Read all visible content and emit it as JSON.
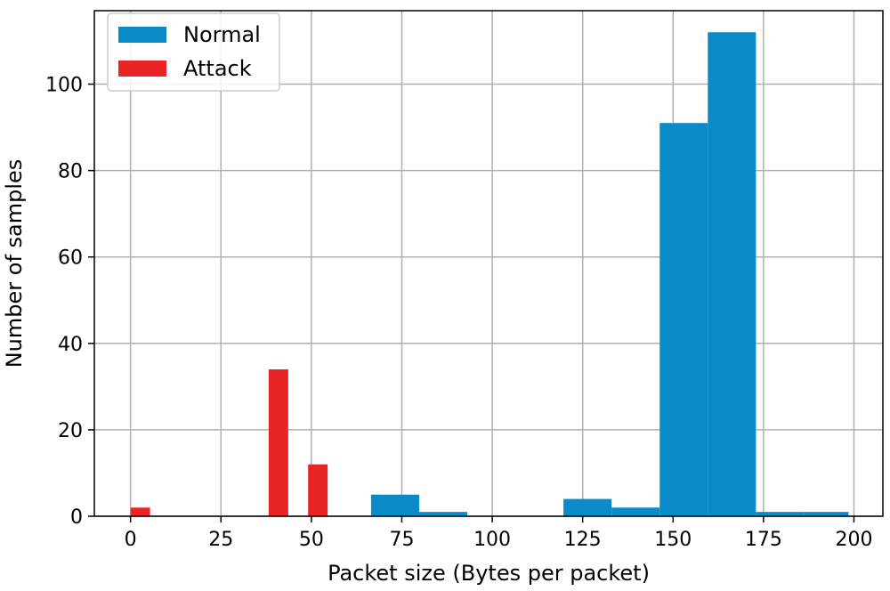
{
  "chart_data": {
    "type": "bar",
    "title": "",
    "xlabel": "Packet size (Bytes per packet)",
    "ylabel": "Number of samples",
    "xlim": [
      -10,
      208
    ],
    "ylim": [
      0,
      117
    ],
    "xticks": [
      0,
      25,
      50,
      75,
      100,
      125,
      150,
      175,
      200
    ],
    "yticks": [
      0,
      20,
      40,
      60,
      80,
      100
    ],
    "grid": true,
    "legend_position": "top-left",
    "series": [
      {
        "name": "Normal",
        "color": "#0a8ac9",
        "bins": [
          {
            "x0": 66.5,
            "x1": 79.8,
            "value": 5
          },
          {
            "x0": 79.8,
            "x1": 93.1,
            "value": 1
          },
          {
            "x0": 119.7,
            "x1": 133.0,
            "value": 4
          },
          {
            "x0": 133.0,
            "x1": 146.3,
            "value": 2
          },
          {
            "x0": 146.3,
            "x1": 159.6,
            "value": 91
          },
          {
            "x0": 159.6,
            "x1": 172.9,
            "value": 112
          },
          {
            "x0": 172.9,
            "x1": 186.2,
            "value": 1
          },
          {
            "x0": 186.2,
            "x1": 198.5,
            "value": 1
          }
        ]
      },
      {
        "name": "Attack",
        "color": "#e82424",
        "bins": [
          {
            "x0": 0,
            "x1": 5.4,
            "value": 2
          },
          {
            "x0": 38.2,
            "x1": 43.6,
            "value": 34
          },
          {
            "x0": 49.1,
            "x1": 54.5,
            "value": 12
          }
        ]
      }
    ]
  }
}
